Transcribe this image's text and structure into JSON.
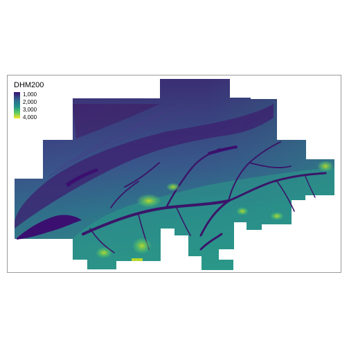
{
  "legend": {
    "title": "DHM200",
    "ticks": [
      "1,000",
      "2,000",
      "3,000",
      "4,000"
    ]
  },
  "palette": {
    "viridis": [
      "#440154",
      "#3b0f70",
      "#31688e",
      "#21918c",
      "#35b779",
      "#5ec962",
      "#fde725"
    ],
    "frame": "#9a9a9a"
  }
}
